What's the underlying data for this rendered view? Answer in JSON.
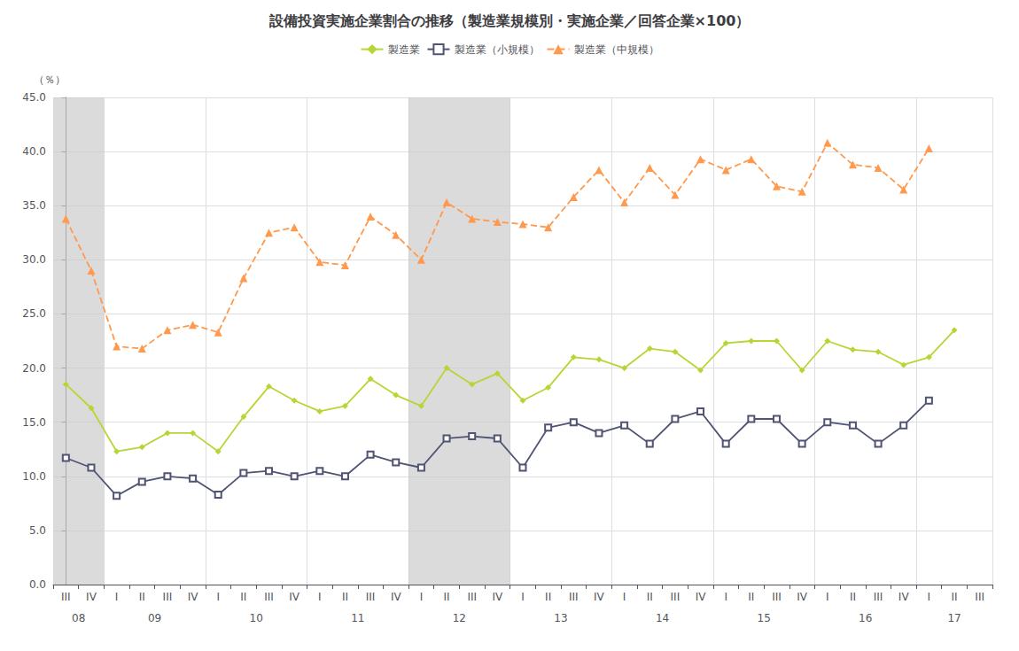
{
  "chart_data": {
    "type": "line",
    "title": "設備投資実施企業割合の推移（製造業規模別・実施企業／回答企業×100）",
    "y_label": "（％）",
    "categories": [
      "III",
      "IV",
      "I",
      "II",
      "III",
      "IV",
      "I",
      "II",
      "III",
      "IV",
      "I",
      "II",
      "III",
      "IV",
      "I",
      "II",
      "III",
      "IV",
      "I",
      "II",
      "III",
      "IV",
      "I",
      "II",
      "III",
      "IV",
      "I",
      "II",
      "III",
      "IV",
      "I",
      "II",
      "III",
      "IV",
      "I",
      "II",
      "III"
    ],
    "year_labels": [
      {
        "label": "08",
        "first": 0,
        "last": 1
      },
      {
        "label": "09",
        "first": 2,
        "last": 5
      },
      {
        "label": "10",
        "first": 6,
        "last": 9
      },
      {
        "label": "11",
        "first": 10,
        "last": 13
      },
      {
        "label": "12",
        "first": 14,
        "last": 17
      },
      {
        "label": "13",
        "first": 18,
        "last": 21
      },
      {
        "label": "14",
        "first": 22,
        "last": 25
      },
      {
        "label": "15",
        "first": 26,
        "last": 29
      },
      {
        "label": "16",
        "first": 30,
        "last": 33
      },
      {
        "label": "17",
        "first": 34,
        "last": 36
      }
    ],
    "shaded": {
      "ranges": [
        [
          0,
          1
        ],
        [
          14,
          17
        ]
      ],
      "color": "#CCCCCC"
    },
    "series": [
      {
        "name": "製造業",
        "marker": "diamond",
        "line_style": "solid",
        "values": [
          18.5,
          16.3,
          12.3,
          12.7,
          14.0,
          14.0,
          12.3,
          15.5,
          18.3,
          17.0,
          16.0,
          16.5,
          19.0,
          17.5,
          16.5,
          20.0,
          18.5,
          19.5,
          17.0,
          18.2,
          21.0,
          20.8,
          20.0,
          21.8,
          21.5,
          19.8,
          22.3,
          22.5,
          22.5,
          19.8,
          22.5,
          21.7,
          21.5,
          20.3,
          21.0,
          23.5,
          null
        ]
      },
      {
        "name": "製造業（小規模）",
        "marker": "open_square",
        "line_style": "solid",
        "values": [
          11.7,
          10.8,
          8.2,
          9.5,
          10.0,
          9.8,
          8.3,
          10.3,
          10.5,
          10.0,
          10.5,
          10.0,
          12.0,
          11.3,
          10.8,
          13.5,
          13.7,
          13.5,
          10.8,
          14.5,
          15.0,
          14.0,
          14.7,
          13.0,
          15.3,
          16.0,
          13.0,
          15.3,
          15.3,
          13.0,
          15.0,
          14.7,
          13.0,
          14.7,
          17.0,
          null,
          null
        ]
      },
      {
        "name": "製造業（中規模）",
        "marker": "triangle",
        "line_style": "dashed",
        "values": [
          33.8,
          29.0,
          22.0,
          21.8,
          23.5,
          24.0,
          23.3,
          28.3,
          32.5,
          33.0,
          29.8,
          29.5,
          34.0,
          32.3,
          30.0,
          35.3,
          33.8,
          33.5,
          33.3,
          33.0,
          35.8,
          38.3,
          35.3,
          38.5,
          36.0,
          39.3,
          38.3,
          39.3,
          36.8,
          36.3,
          40.8,
          38.8,
          38.5,
          36.5,
          40.3,
          null,
          null
        ]
      }
    ],
    "ylim": [
      0.0,
      45.0
    ],
    "yticks": [
      {
        "value": 0,
        "label": "0.0"
      },
      {
        "value": 5,
        "label": "5.0"
      },
      {
        "value": 10,
        "label": "10.0"
      },
      {
        "value": 15,
        "label": "15.0"
      },
      {
        "value": 20,
        "label": "20.0"
      },
      {
        "value": 25,
        "label": "25.0"
      },
      {
        "value": 30,
        "label": "30.0"
      },
      {
        "value": 35,
        "label": "35.0"
      },
      {
        "value": 40,
        "label": "40.0"
      },
      {
        "value": 45,
        "label": "45.0"
      }
    ],
    "grid": true,
    "legend": "top"
  }
}
